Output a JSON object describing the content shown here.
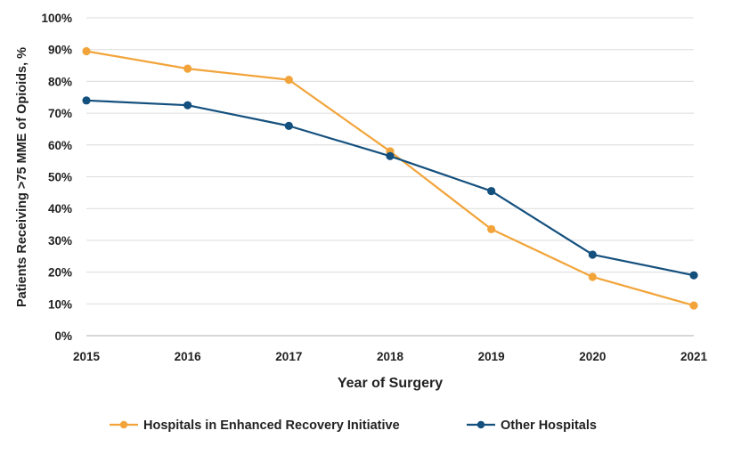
{
  "chart_data": {
    "type": "line",
    "title": "",
    "xlabel": "Year of Surgery",
    "ylabel": "Patients Receiving >75 MME of Opioids, %",
    "categories": [
      "2015",
      "2016",
      "2017",
      "2018",
      "2019",
      "2020",
      "2021"
    ],
    "ylim": [
      0,
      100
    ],
    "yticks": [
      0,
      10,
      20,
      30,
      40,
      50,
      60,
      70,
      80,
      90,
      100
    ],
    "ytick_labels": [
      "0%",
      "10%",
      "20%",
      "30%",
      "40%",
      "50%",
      "60%",
      "70%",
      "80%",
      "90%",
      "100%"
    ],
    "grid": "horizontal",
    "legend_position": "bottom",
    "series": [
      {
        "name": "Hospitals in Enhanced Recovery Initiative",
        "color": "#F2A43A",
        "values": [
          89.5,
          84,
          80.5,
          58,
          33.5,
          18.5,
          9.5
        ]
      },
      {
        "name": "Other Hospitals",
        "color": "#14507E",
        "values": [
          74,
          72.5,
          66,
          56.5,
          45.5,
          25.5,
          19
        ]
      }
    ]
  }
}
